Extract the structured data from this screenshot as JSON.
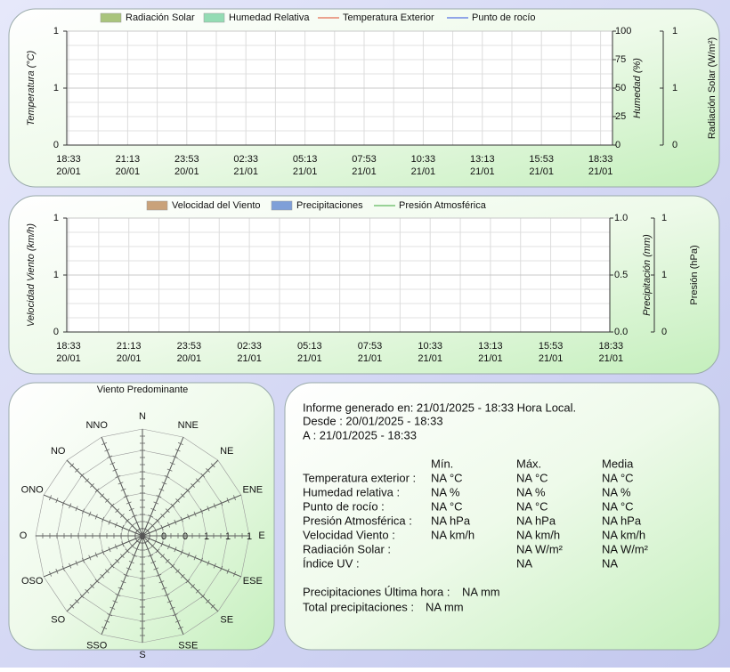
{
  "chart_data": [
    {
      "type": "line",
      "y_label": "Temperatura (°C)",
      "y2_label": "Humedad (%)",
      "y3_label": "Radiación Solar (W/m²)",
      "x_labels": [
        {
          "time": "18:33",
          "date": "20/01"
        },
        {
          "time": "21:13",
          "date": "20/01"
        },
        {
          "time": "23:53",
          "date": "20/01"
        },
        {
          "time": "02:33",
          "date": "21/01"
        },
        {
          "time": "05:13",
          "date": "21/01"
        },
        {
          "time": "07:53",
          "date": "21/01"
        },
        {
          "time": "10:33",
          "date": "21/01"
        },
        {
          "time": "13:13",
          "date": "21/01"
        },
        {
          "time": "15:53",
          "date": "21/01"
        },
        {
          "time": "18:33",
          "date": "21/01"
        }
      ],
      "series": [
        {
          "name": "Radiación Solar",
          "color": "#a9c47c",
          "style": "area",
          "axis": "y3",
          "values": []
        },
        {
          "name": "Humedad Relativa",
          "color": "#94dcb4",
          "style": "area",
          "axis": "y2",
          "values": []
        },
        {
          "name": "Temperatura Exterior",
          "color": "#e04a2a",
          "style": "line",
          "values": []
        },
        {
          "name": "Punto de rocío",
          "color": "#2f4fe0",
          "style": "line",
          "values": []
        }
      ],
      "ylim": [
        0,
        1
      ],
      "yticks": [
        0,
        {
          "value": 0.5,
          "label": "1"
        },
        1
      ],
      "y2lim": [
        0,
        100
      ],
      "y2ticks": [
        0,
        25,
        50,
        75,
        100
      ],
      "y3lim": [
        0,
        1
      ],
      "y3ticks": [
        0,
        {
          "value": 0.5,
          "label": "1"
        },
        1
      ],
      "grid": true
    },
    {
      "type": "line",
      "y_label": "Velocidad Viento (km/h)",
      "y2_label": "Precipitación (mm)",
      "y3_label": "Presión (hPa)",
      "x_labels": [
        {
          "time": "18:33",
          "date": "20/01"
        },
        {
          "time": "21:13",
          "date": "20/01"
        },
        {
          "time": "23:53",
          "date": "20/01"
        },
        {
          "time": "02:33",
          "date": "21/01"
        },
        {
          "time": "05:13",
          "date": "21/01"
        },
        {
          "time": "07:53",
          "date": "21/01"
        },
        {
          "time": "10:33",
          "date": "21/01"
        },
        {
          "time": "13:13",
          "date": "21/01"
        },
        {
          "time": "15:53",
          "date": "21/01"
        },
        {
          "time": "18:33",
          "date": "21/01"
        }
      ],
      "series": [
        {
          "name": "Velocidad del Viento",
          "color": "#c9a27a",
          "style": "area",
          "values": []
        },
        {
          "name": "Precipitaciones",
          "color": "#7f9fd8",
          "style": "area",
          "axis": "y2",
          "values": []
        },
        {
          "name": "Presión Atmosférica",
          "color": "#3aa83a",
          "style": "line",
          "axis": "y3",
          "values": []
        }
      ],
      "ylim": [
        0,
        1
      ],
      "yticks": [
        0,
        {
          "value": 0.5,
          "label": "1"
        },
        1
      ],
      "y2lim": [
        0,
        1
      ],
      "y2ticks": [
        {
          "value": 0,
          "label": "0.0"
        },
        0.5,
        {
          "value": 1,
          "label": "1.0"
        }
      ],
      "y3lim": [
        0,
        1
      ],
      "y3ticks": [
        0,
        {
          "value": 0.5,
          "label": "1"
        },
        1
      ],
      "grid": true
    },
    {
      "type": "polar",
      "title": "Viento Predominante",
      "directions": [
        "N",
        "NNE",
        "NE",
        "ENE",
        "E",
        "ESE",
        "SE",
        "SSE",
        "S",
        "SSO",
        "SO",
        "OSO",
        "O",
        "ONO",
        "NO",
        "NNO"
      ],
      "rlim": [
        0,
        1
      ],
      "rticks": [
        0,
        {
          "value": 0.2,
          "label": "0"
        },
        {
          "value": 0.4,
          "label": "0"
        },
        {
          "value": 0.6,
          "label": "1"
        },
        {
          "value": 0.8,
          "label": "1"
        },
        1
      ],
      "values": []
    }
  ],
  "report": {
    "generated": "Informe generado en: 21/01/2025 - 18:33 Hora Local.",
    "from": "Desde : 20/01/2025 - 18:33",
    "to": "A : 21/01/2025 - 18:33",
    "columns": [
      "Mín.",
      "Máx.",
      "Media"
    ],
    "rows": [
      [
        "Temperatura exterior :",
        "NA °C",
        "NA °C",
        "NA °C"
      ],
      [
        "Humedad relativa :",
        "NA %",
        "NA %",
        "NA %"
      ],
      [
        "Punto de rocío :",
        "NA °C",
        "NA °C",
        "NA °C"
      ],
      [
        "Presión Atmosférica :",
        "NA hPa",
        "NA hPa",
        "NA hPa"
      ],
      [
        "Velocidad Viento :",
        "NA km/h",
        "NA km/h",
        "NA km/h"
      ],
      [
        "Radiación Solar :",
        null,
        "NA W/m²",
        "NA W/m²"
      ],
      [
        "Índice UV :",
        null,
        "NA",
        "NA"
      ]
    ],
    "rain_hour_label": "Precipitaciones Última hora :",
    "rain_hour": "NA mm",
    "rain_total_label": "Total precipitaciones :",
    "rain_total": "NA mm"
  }
}
